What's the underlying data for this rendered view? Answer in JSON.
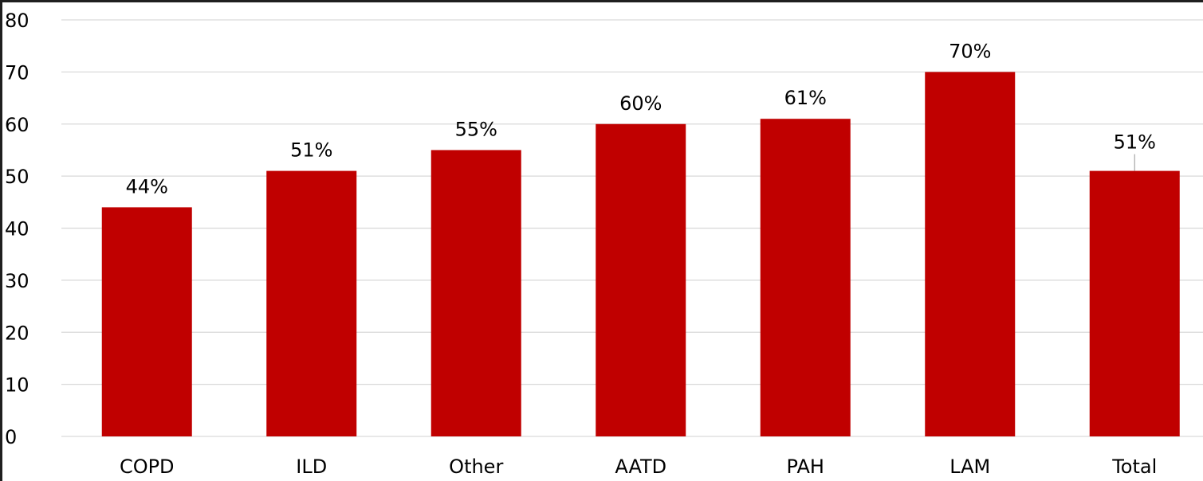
{
  "chart_data": {
    "type": "bar",
    "categories": [
      "COPD",
      "ILD",
      "Other",
      "AATD",
      "PAH",
      "LAM",
      "Total"
    ],
    "values": [
      44,
      51,
      55,
      60,
      61,
      70,
      51
    ],
    "data_labels": [
      "44%",
      "51%",
      "55%",
      "60%",
      "61%",
      "70%",
      "51%"
    ],
    "ylim": [
      0,
      80
    ],
    "yticks": [
      0,
      10,
      20,
      30,
      40,
      50,
      60,
      70,
      80
    ],
    "grid": true,
    "legend": "none",
    "bar_color": "#c00000"
  }
}
